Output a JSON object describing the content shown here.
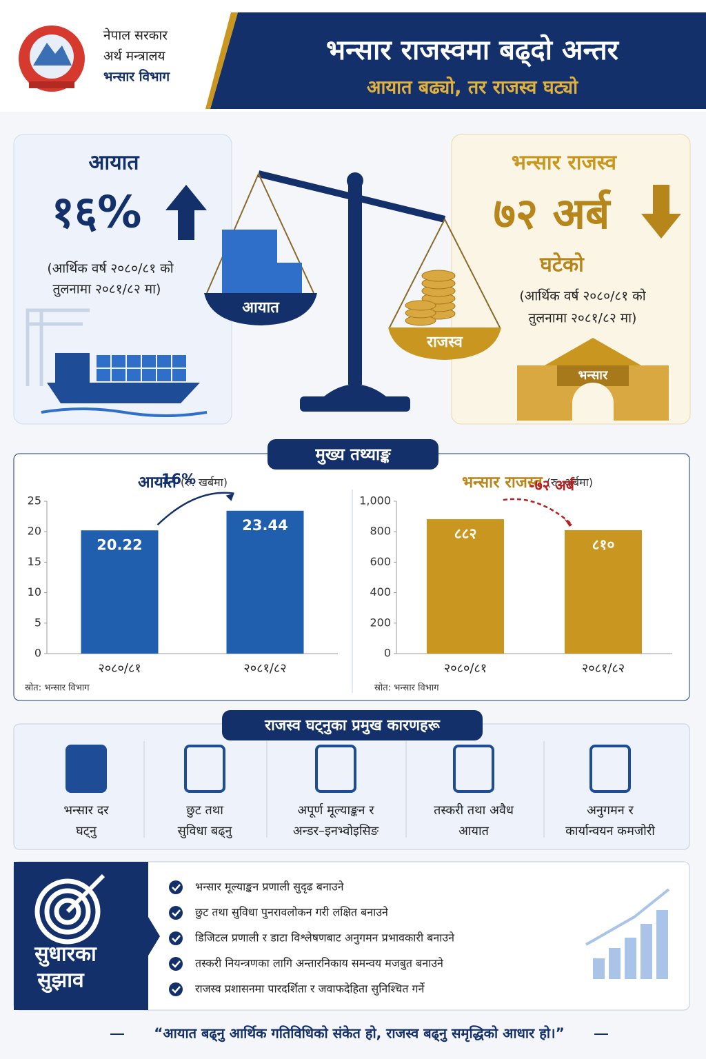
{
  "header": {
    "org": [
      "नेपाल सरकार",
      "अर्थ मन्त्रालय",
      "भन्सार विभाग"
    ],
    "title": "भन्सार राजस्वमा बढ्दो अन्तर",
    "subtitle": "आयात बढ्यो, तर राजस्व घट्यो"
  },
  "hero": {
    "imports": {
      "label": "आयात",
      "figure": "१६%",
      "note": [
        "(आर्थिक वर्ष २०८०/८१ को",
        "तुलनामा २०८१/८२ मा)"
      ]
    },
    "scale_labels": [
      "आयात",
      "राजस्व"
    ],
    "revenue": {
      "label": "भन्सार राजस्व",
      "figure": "७२ अर्ब",
      "status": "घटेको",
      "note": [
        "(आर्थिक वर्ष २०८०/८१ को",
        "तुलनामा २०८१/८२ मा)"
      ]
    },
    "building_label": "भन्सार"
  },
  "stats_title": "मुख्य तथ्याङ्क",
  "chart_data": [
    {
      "type": "bar",
      "title": "आयात",
      "unit": "(रु. खर्बमा)",
      "categories": [
        "२०८०/८१",
        "२०८१/८२"
      ],
      "values": [
        20.22,
        23.44
      ],
      "color": "#1f5fad",
      "ylim": [
        0,
        25
      ],
      "yticks": [
        0,
        5,
        10,
        15,
        20,
        25
      ],
      "annotation": "16%",
      "source": "स्रोत: भन्सार विभाग"
    },
    {
      "type": "bar",
      "title": "भन्सार राजस्व",
      "unit": "(रु. अर्बमा)",
      "categories": [
        "२०८०/८१",
        "२०८१/८२"
      ],
      "values": [
        882,
        810
      ],
      "value_labels": [
        "८८२",
        "८१०"
      ],
      "color": "#c9971f",
      "ylim": [
        0,
        1000
      ],
      "yticks": [
        0,
        200,
        400,
        600,
        800,
        {
          "value": 1000,
          "label": "1,000"
        }
      ],
      "annotation": "-७२ अर्ब",
      "source": "स्रोत: भन्सार विभाग"
    }
  ],
  "reasons": {
    "title": "राजस्व घट्नुका प्रमुख कारणहरू",
    "items": [
      [
        "भन्सार दर",
        "घट्नु"
      ],
      [
        "छुट तथा",
        "सुविधा बढ्नु"
      ],
      [
        "अपूर्ण मूल्याङ्कन र",
        "अन्डर–इनभ्वोइसिङ"
      ],
      [
        "तस्करी तथा अवैध",
        "आयात"
      ],
      [
        "अनुगमन र",
        "कार्यान्वयन कमजोरी"
      ]
    ]
  },
  "recommendations": {
    "title": [
      "सुधारका",
      "सुझाव"
    ],
    "items": [
      "भन्सार मूल्याङ्कन प्रणाली सुदृढ बनाउने",
      "छुट तथा सुविधा पुनरावलोकन गरी लक्षित बनाउने",
      "डिजिटल प्रणाली र डाटा विश्लेषणबाट अनुगमन प्रभावकारी बनाउने",
      "तस्करी नियन्त्रणका लागि अन्तारनिकाय समन्वय मजबुत बनाउने",
      "राजस्व प्रशासनमा पारदर्शिता र जवाफदेहिता सुनिश्चित गर्ने"
    ]
  },
  "quote": "“आयात बढ्नु आर्थिक गतिविधिको संकेत हो, राजस्व बढ्नु समृद्धिको आधार हो।”"
}
